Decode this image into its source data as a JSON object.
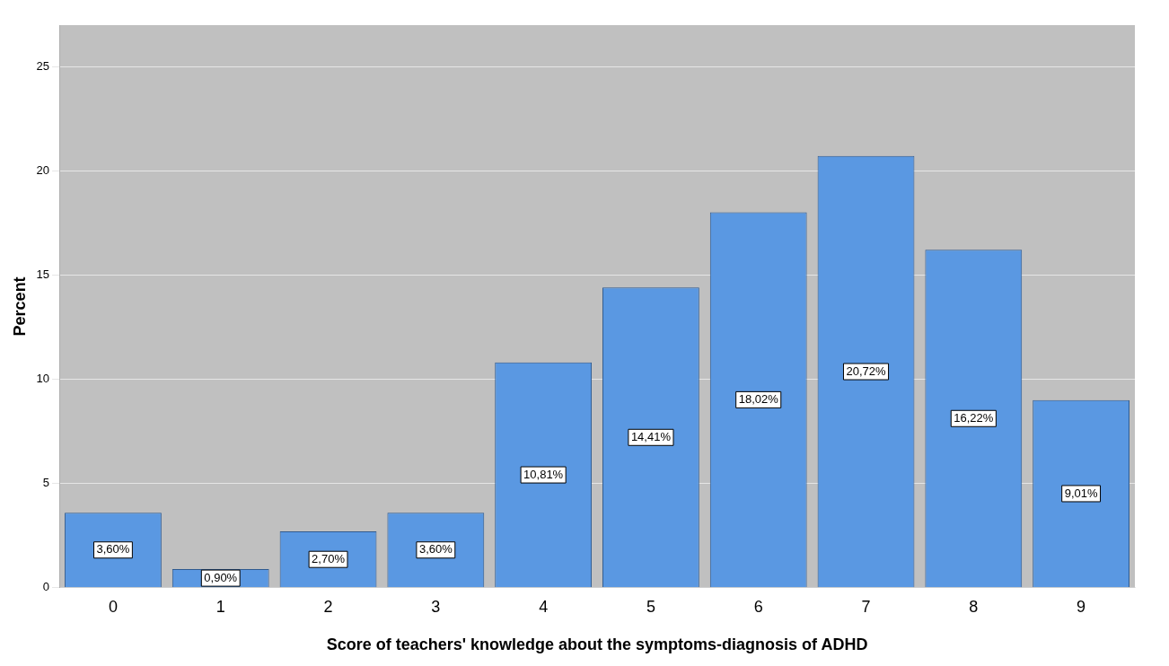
{
  "chart_data": {
    "type": "bar",
    "xlabel": "Score of teachers' knowledge about the symptoms-diagnosis of ADHD",
    "ylabel": "Percent",
    "categories": [
      "0",
      "1",
      "2",
      "3",
      "4",
      "5",
      "6",
      "7",
      "8",
      "9"
    ],
    "values": [
      3.6,
      0.9,
      2.7,
      3.6,
      10.81,
      14.41,
      18.02,
      20.72,
      16.22,
      9.01
    ],
    "value_labels": [
      "3,60%",
      "0,90%",
      "2,70%",
      "3,60%",
      "10,81%",
      "14,41%",
      "18,02%",
      "20,72%",
      "16,22%",
      "9,01%"
    ],
    "color": "#5a98e2",
    "ylim": [
      0,
      27
    ],
    "yticks": [
      0,
      5,
      10,
      15,
      20,
      25
    ],
    "grid": "y",
    "legend": false
  }
}
